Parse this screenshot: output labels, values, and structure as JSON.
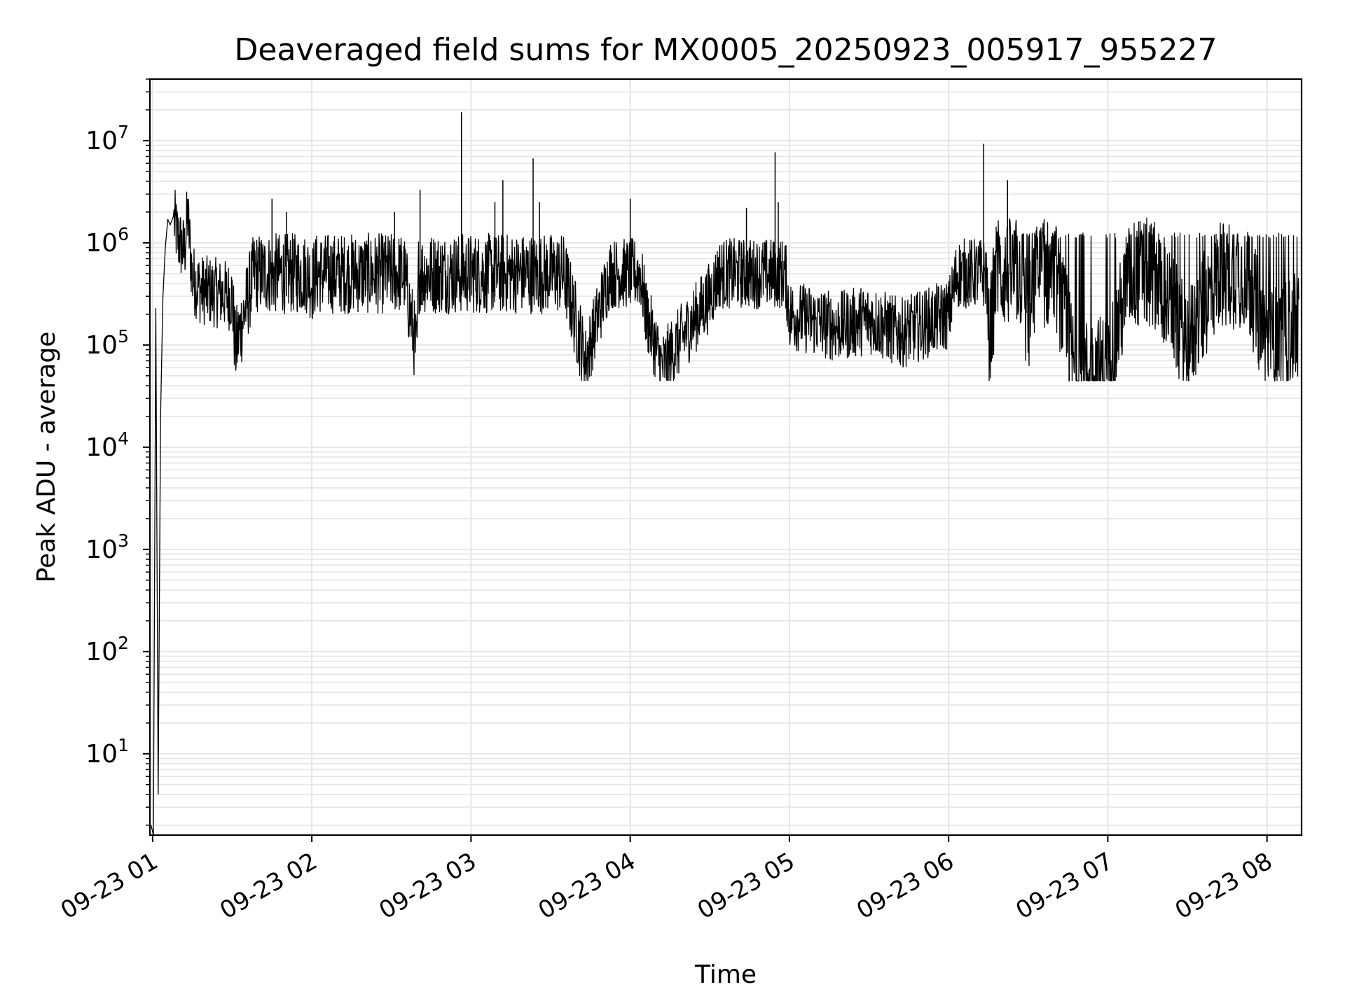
{
  "chart_data": {
    "type": "line",
    "title": "Deaveraged field sums for MX0005_20250923_005917_955227",
    "xlabel": "Time",
    "ylabel": "Peak ADU - average",
    "yscale": "log",
    "ylim": [
      1.6,
      40000000
    ],
    "xlim_hours": [
      0.983,
      8.217
    ],
    "grid": true,
    "line_color": "#000000",
    "grid_color": "#e6e6e6",
    "x_ticks": [
      {
        "hour": 1,
        "label": "09-23 01"
      },
      {
        "hour": 2,
        "label": "09-23 02"
      },
      {
        "hour": 3,
        "label": "09-23 03"
      },
      {
        "hour": 4,
        "label": "09-23 04"
      },
      {
        "hour": 5,
        "label": "09-23 05"
      },
      {
        "hour": 6,
        "label": "09-23 06"
      },
      {
        "hour": 7,
        "label": "09-23 07"
      },
      {
        "hour": 8,
        "label": "09-23 08"
      }
    ],
    "y_ticks": [
      {
        "exp": 1,
        "base": "10",
        "sup": "1"
      },
      {
        "exp": 2,
        "base": "10",
        "sup": "2"
      },
      {
        "exp": 3,
        "base": "10",
        "sup": "3"
      },
      {
        "exp": 4,
        "base": "10",
        "sup": "4"
      },
      {
        "exp": 5,
        "base": "10",
        "sup": "5"
      },
      {
        "exp": 6,
        "base": "10",
        "sup": "6"
      },
      {
        "exp": 7,
        "base": "10",
        "sup": "7"
      }
    ],
    "series": [
      {
        "name": "Peak ADU - average",
        "points": [
          [
            0.99,
            2.0
          ],
          [
            1.005,
            1.6
          ],
          [
            1.02,
            230000
          ],
          [
            1.035,
            4.0
          ],
          [
            1.05,
            20000
          ],
          [
            1.065,
            300000
          ],
          [
            1.08,
            900000
          ],
          [
            1.095,
            1700000
          ],
          [
            1.11,
            1500000
          ],
          [
            1.13,
            1800000
          ],
          [
            1.16,
            1100000
          ],
          [
            1.2,
            800000
          ],
          [
            1.22,
            1900000
          ],
          [
            1.25,
            450000
          ],
          [
            1.3,
            350000
          ],
          [
            1.5,
            300000
          ],
          [
            1.52,
            90000
          ],
          [
            1.75,
            2700000
          ],
          [
            1.84,
            2000000
          ],
          [
            2.0,
            400000
          ],
          [
            2.1,
            1000000
          ],
          [
            2.5,
            900000
          ],
          [
            2.52,
            2000000
          ],
          [
            2.66,
            80000
          ],
          [
            2.68,
            3300000
          ],
          [
            2.8,
            1200000
          ],
          [
            2.94,
            19000000
          ],
          [
            3.03,
            700000
          ],
          [
            3.15,
            2500000
          ],
          [
            3.2,
            4100000
          ],
          [
            3.3,
            1000000
          ],
          [
            3.39,
            6700000
          ],
          [
            3.43,
            2500000
          ],
          [
            3.6,
            400000
          ],
          [
            3.72,
            70000
          ],
          [
            4.0,
            2700000
          ],
          [
            4.1,
            200000
          ],
          [
            4.2,
            60000
          ],
          [
            4.5,
            300000
          ],
          [
            4.73,
            2200000
          ],
          [
            4.91,
            7700000
          ],
          [
            4.93,
            2500000
          ],
          [
            5.0,
            200000
          ],
          [
            5.3,
            150000
          ],
          [
            5.5,
            180000
          ],
          [
            5.7,
            130000
          ],
          [
            6.0,
            200000
          ],
          [
            6.22,
            9300000
          ],
          [
            6.25,
            100000
          ],
          [
            6.37,
            4100000
          ],
          [
            6.5,
            150000
          ],
          [
            6.6,
            1700000
          ],
          [
            6.8,
            50000
          ],
          [
            7.0,
            60000
          ],
          [
            7.2,
            1200000
          ],
          [
            7.5,
            100000
          ],
          [
            7.8,
            1200000
          ],
          [
            8.0,
            100000
          ],
          [
            8.2,
            150000
          ]
        ]
      }
    ]
  }
}
